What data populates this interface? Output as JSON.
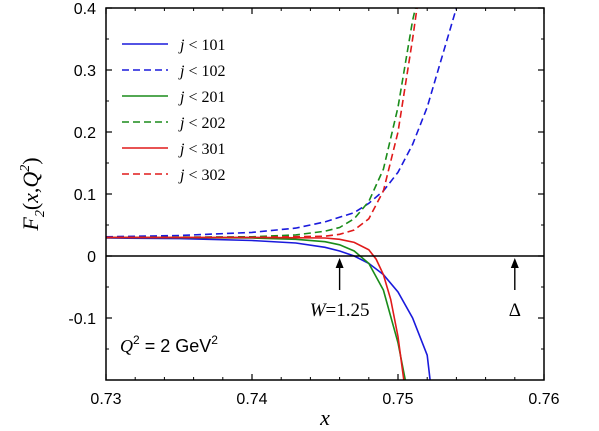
{
  "chart_data": {
    "type": "line",
    "xlabel": "x",
    "ylabel": "F2(x,Q2)",
    "xlim": [
      0.73,
      0.76
    ],
    "ylim": [
      -0.2,
      0.4
    ],
    "x_ticks": [
      "0.73",
      "0.74",
      "0.75",
      "0.76"
    ],
    "y_ticks": [
      "-0.1",
      "0",
      "0.1",
      "0.2",
      "0.3",
      "0.4"
    ],
    "grid": false,
    "legend_position": "top-left",
    "series": [
      {
        "name": "j < 101",
        "color": "#1a1adc",
        "dash": "solid",
        "points": [
          [
            0.73,
            0.029
          ],
          [
            0.735,
            0.028
          ],
          [
            0.74,
            0.025
          ],
          [
            0.743,
            0.021
          ],
          [
            0.745,
            0.014
          ],
          [
            0.746,
            0.008
          ],
          [
            0.747,
            0.0
          ],
          [
            0.748,
            -0.012
          ],
          [
            0.749,
            -0.03
          ],
          [
            0.75,
            -0.058
          ],
          [
            0.751,
            -0.1
          ],
          [
            0.752,
            -0.16
          ],
          [
            0.7522,
            -0.2
          ]
        ]
      },
      {
        "name": "j < 102",
        "color": "#1a1adc",
        "dash": "dashed",
        "points": [
          [
            0.73,
            0.031
          ],
          [
            0.735,
            0.033
          ],
          [
            0.74,
            0.038
          ],
          [
            0.743,
            0.045
          ],
          [
            0.745,
            0.055
          ],
          [
            0.747,
            0.07
          ],
          [
            0.748,
            0.085
          ],
          [
            0.749,
            0.105
          ],
          [
            0.75,
            0.135
          ],
          [
            0.751,
            0.18
          ],
          [
            0.752,
            0.24
          ],
          [
            0.753,
            0.32
          ],
          [
            0.754,
            0.4
          ]
        ]
      },
      {
        "name": "j < 201",
        "color": "#1a8c1a",
        "dash": "solid",
        "points": [
          [
            0.73,
            0.03
          ],
          [
            0.74,
            0.029
          ],
          [
            0.743,
            0.027
          ],
          [
            0.745,
            0.023
          ],
          [
            0.746,
            0.018
          ],
          [
            0.747,
            0.008
          ],
          [
            0.748,
            -0.012
          ],
          [
            0.749,
            -0.055
          ],
          [
            0.75,
            -0.14
          ],
          [
            0.7505,
            -0.2
          ]
        ]
      },
      {
        "name": "j < 202",
        "color": "#1a8c1a",
        "dash": "dashed",
        "points": [
          [
            0.73,
            0.03
          ],
          [
            0.74,
            0.031
          ],
          [
            0.743,
            0.034
          ],
          [
            0.745,
            0.04
          ],
          [
            0.746,
            0.046
          ],
          [
            0.747,
            0.06
          ],
          [
            0.748,
            0.088
          ],
          [
            0.749,
            0.14
          ],
          [
            0.75,
            0.24
          ],
          [
            0.751,
            0.38
          ],
          [
            0.7512,
            0.4
          ]
        ]
      },
      {
        "name": "j < 301",
        "color": "#e01a1a",
        "dash": "solid",
        "points": [
          [
            0.73,
            0.03
          ],
          [
            0.74,
            0.03
          ],
          [
            0.745,
            0.029
          ],
          [
            0.746,
            0.027
          ],
          [
            0.747,
            0.022
          ],
          [
            0.748,
            0.01
          ],
          [
            0.7485,
            -0.005
          ],
          [
            0.749,
            -0.03
          ],
          [
            0.7495,
            -0.07
          ],
          [
            0.75,
            -0.13
          ],
          [
            0.7504,
            -0.2
          ]
        ]
      },
      {
        "name": "j < 302",
        "color": "#e01a1a",
        "dash": "dashed",
        "points": [
          [
            0.73,
            0.03
          ],
          [
            0.74,
            0.03
          ],
          [
            0.745,
            0.032
          ],
          [
            0.746,
            0.035
          ],
          [
            0.747,
            0.042
          ],
          [
            0.748,
            0.06
          ],
          [
            0.749,
            0.105
          ],
          [
            0.75,
            0.2
          ],
          [
            0.751,
            0.35
          ],
          [
            0.7513,
            0.4
          ]
        ]
      }
    ],
    "annotations": [
      {
        "x": 0.746,
        "text": "W=1.25"
      },
      {
        "x": 0.758,
        "text": "Δ"
      }
    ],
    "note": "Q2 = 2 GeV2"
  }
}
